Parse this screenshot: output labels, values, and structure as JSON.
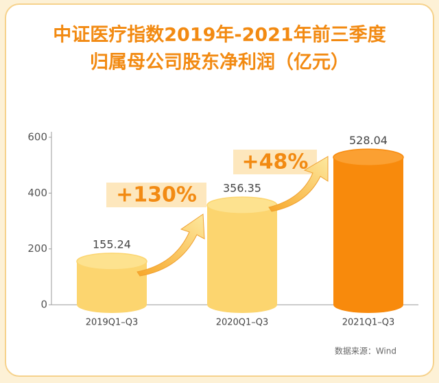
{
  "chart_data": {
    "type": "bar",
    "title_lines": [
      "中证医疗指数2019年-2021年前三季度",
      "归属母公司股东净利润（亿元）"
    ],
    "categories": [
      "2019Q1–Q3",
      "2020Q1–Q3",
      "2021Q1–Q3"
    ],
    "values": [
      155.24,
      356.35,
      528.04
    ],
    "colors": [
      "#fcd56f",
      "#fcd56f",
      "#f88a0c"
    ],
    "ylim": [
      0,
      600
    ],
    "yticks": [
      0,
      200,
      400,
      600
    ],
    "grid": false,
    "annotations": [
      "+130%",
      "+48%"
    ],
    "source": "数据来源：Wind"
  }
}
